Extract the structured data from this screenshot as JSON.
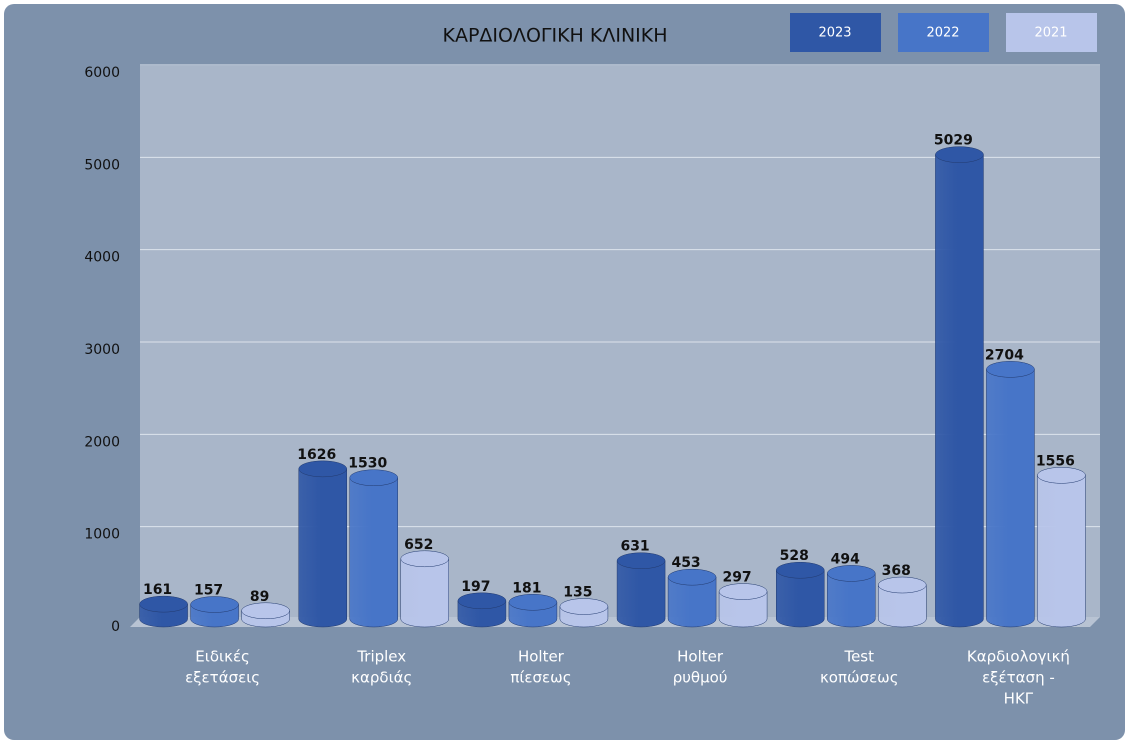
{
  "chart_data": {
    "type": "bar",
    "title": "ΚΑΡΔΙΟΛΟΓΙΚΗ ΚΛΙΝΙΚΗ",
    "categories": [
      [
        "Ειδικές",
        "εξετάσεις"
      ],
      [
        "Triplex",
        "καρδιάς"
      ],
      [
        "Holter",
        "πίεσεως"
      ],
      [
        "Holter",
        "ρυθμού"
      ],
      [
        "Test",
        "κοπώσεως"
      ],
      [
        "Καρδιολογική",
        "εξέταση -",
        "ΗΚΓ"
      ]
    ],
    "series": [
      {
        "name": "2023",
        "color": "#2f57a6",
        "values": [
          161,
          1626,
          197,
          631,
          528,
          5029
        ]
      },
      {
        "name": "2022",
        "color": "#4775c8",
        "values": [
          157,
          1530,
          181,
          453,
          494,
          2704
        ]
      },
      {
        "name": "2021",
        "color": "#b8c5ea",
        "values": [
          89,
          652,
          135,
          297,
          368,
          1556
        ]
      }
    ],
    "ylim": [
      0,
      6000
    ],
    "yticks": [
      0,
      1000,
      2000,
      3000,
      4000,
      5000,
      6000
    ],
    "grid": true,
    "legend": "top-right"
  }
}
